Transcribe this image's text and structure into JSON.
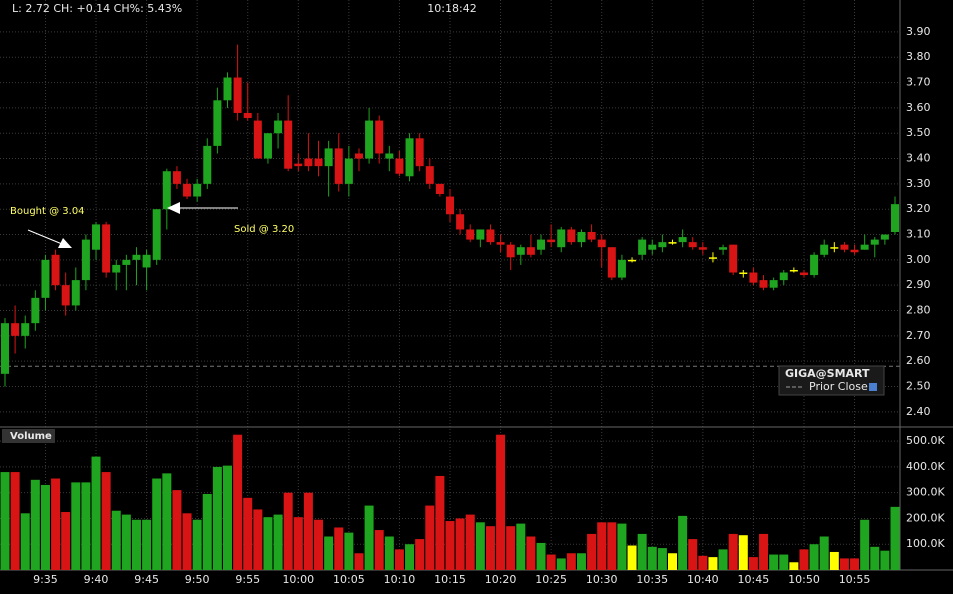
{
  "chart_data": {
    "type": "candlestick",
    "header": "L: 2.72 CH: +0.14 CH%: 5.43%",
    "clock": "10:18:42",
    "volume_title": "Volume",
    "legend": {
      "title": "GIGA@SMART",
      "entries": [
        "Prior Close"
      ]
    },
    "annotations": [
      "Bought @ 3.04",
      "Sold @ 3.20"
    ],
    "up_color": "#1fa51f",
    "down_color": "#d81414",
    "flat_color": "#ffff00",
    "prior_close": 2.58,
    "categories": [
      null,
      null,
      null,
      null,
      "9:35",
      null,
      null,
      null,
      null,
      "9:40",
      null,
      null,
      null,
      null,
      "9:45",
      null,
      null,
      null,
      null,
      "9:50",
      null,
      null,
      null,
      null,
      "9:55",
      null,
      null,
      null,
      null,
      "10:00",
      null,
      null,
      null,
      null,
      "10:05",
      null,
      null,
      null,
      null,
      "10:10",
      null,
      null,
      null,
      null,
      "10:15",
      null,
      null,
      null,
      null,
      "10:20",
      null,
      null,
      null,
      null,
      "10:25",
      null,
      null,
      null,
      null,
      "10:30",
      null,
      null,
      null,
      null,
      "10:35",
      null,
      null,
      null,
      null,
      "10:40",
      null,
      null,
      null,
      null,
      "10:45",
      null,
      null,
      null,
      null,
      "10:50",
      null,
      null,
      null,
      null,
      "10:55",
      null,
      null,
      null,
      null
    ],
    "open": [
      2.55,
      2.75,
      2.7,
      2.75,
      2.85,
      3.02,
      2.9,
      2.82,
      2.92,
      3.04,
      3.14,
      2.95,
      2.98,
      3.0,
      2.97,
      3.0,
      3.2,
      3.35,
      3.3,
      3.25,
      3.3,
      3.45,
      3.63,
      3.72,
      3.58,
      3.55,
      3.4,
      3.5,
      3.55,
      3.38,
      3.4,
      3.4,
      3.37,
      3.44,
      3.3,
      3.42,
      3.4,
      3.55,
      3.4,
      3.4,
      3.33,
      3.48,
      3.37,
      3.3,
      3.25,
      3.18,
      3.12,
      3.08,
      3.12,
      3.07,
      3.06,
      3.02,
      3.05,
      3.04,
      3.08,
      3.05,
      3.12,
      3.07,
      3.11,
      3.08,
      3.05,
      2.93,
      3.0,
      3.02,
      3.04,
      3.05,
      3.07,
      3.07,
      3.07,
      3.05,
      3.01,
      3.04,
      3.06,
      2.95,
      2.95,
      2.92,
      2.89,
      2.92,
      2.96,
      2.95,
      2.94,
      3.02,
      3.05,
      3.06,
      3.04,
      3.04,
      3.06,
      3.08,
      3.11
    ],
    "high": [
      2.77,
      2.82,
      2.78,
      2.88,
      3.02,
      3.04,
      2.95,
      2.97,
      3.1,
      3.15,
      3.15,
      3.0,
      3.02,
      3.05,
      3.04,
      3.2,
      3.36,
      3.37,
      3.32,
      3.32,
      3.48,
      3.68,
      3.74,
      3.85,
      3.7,
      3.58,
      3.5,
      3.58,
      3.65,
      3.42,
      3.5,
      3.47,
      3.47,
      3.5,
      3.45,
      3.44,
      3.6,
      3.57,
      3.45,
      3.43,
      3.5,
      3.5,
      3.4,
      3.3,
      3.28,
      3.2,
      3.14,
      3.12,
      3.14,
      3.1,
      3.07,
      3.06,
      3.1,
      3.1,
      3.14,
      3.13,
      3.13,
      3.12,
      3.14,
      3.1,
      3.05,
      3.02,
      3.01,
      3.09,
      3.08,
      3.1,
      3.08,
      3.12,
      3.09,
      3.07,
      3.03,
      3.06,
      3.06,
      2.96,
      2.97,
      2.94,
      2.93,
      2.96,
      2.97,
      2.96,
      3.03,
      3.08,
      3.07,
      3.07,
      3.06,
      3.1,
      3.09,
      3.1,
      3.25
    ],
    "low": [
      2.5,
      2.63,
      2.65,
      2.72,
      2.8,
      2.88,
      2.78,
      2.8,
      2.88,
      3.0,
      2.93,
      2.88,
      2.88,
      2.9,
      2.88,
      2.98,
      3.12,
      3.28,
      3.24,
      3.23,
      3.28,
      3.42,
      3.6,
      3.55,
      3.55,
      3.4,
      3.38,
      3.44,
      3.35,
      3.35,
      3.35,
      3.33,
      3.25,
      3.27,
      3.25,
      3.35,
      3.38,
      3.38,
      3.35,
      3.33,
      3.31,
      3.35,
      3.28,
      3.25,
      3.15,
      3.1,
      3.07,
      3.05,
      3.06,
      3.03,
      2.96,
      2.98,
      3.01,
      3.02,
      3.05,
      3.03,
      3.06,
      3.05,
      3.07,
      2.97,
      2.92,
      2.92,
      2.99,
      3.0,
      3.02,
      3.03,
      3.06,
      3.05,
      3.04,
      3.02,
      2.99,
      3.02,
      2.94,
      2.93,
      2.9,
      2.88,
      2.88,
      2.9,
      2.95,
      2.93,
      2.93,
      3.01,
      3.03,
      3.03,
      3.02,
      3.04,
      3.01,
      3.06,
      3.1
    ],
    "close": [
      2.75,
      2.7,
      2.75,
      2.85,
      3.0,
      2.9,
      2.82,
      2.92,
      3.08,
      3.14,
      2.95,
      2.98,
      3.0,
      3.02,
      3.02,
      3.2,
      3.35,
      3.3,
      3.25,
      3.3,
      3.45,
      3.63,
      3.72,
      3.58,
      3.56,
      3.4,
      3.5,
      3.55,
      3.36,
      3.37,
      3.37,
      3.37,
      3.44,
      3.3,
      3.4,
      3.4,
      3.55,
      3.42,
      3.42,
      3.34,
      3.48,
      3.37,
      3.3,
      3.26,
      3.18,
      3.12,
      3.08,
      3.12,
      3.07,
      3.06,
      3.01,
      3.05,
      3.02,
      3.08,
      3.07,
      3.12,
      3.07,
      3.11,
      3.08,
      3.05,
      2.93,
      3.0,
      3.0,
      3.08,
      3.06,
      3.07,
      3.07,
      3.09,
      3.05,
      3.04,
      3.01,
      3.05,
      2.95,
      2.95,
      2.91,
      2.89,
      2.92,
      2.95,
      2.96,
      2.94,
      3.02,
      3.06,
      3.05,
      3.04,
      3.03,
      3.06,
      3.08,
      3.1,
      3.22
    ],
    "volume": [
      380000,
      380000,
      220000,
      350000,
      330000,
      355000,
      225000,
      340000,
      340000,
      440000,
      380000,
      230000,
      215000,
      195000,
      195000,
      355000,
      375000,
      310000,
      220000,
      195000,
      295000,
      400000,
      405000,
      525000,
      280000,
      235000,
      205000,
      215000,
      300000,
      205000,
      300000,
      195000,
      130000,
      165000,
      145000,
      65000,
      250000,
      155000,
      130000,
      80000,
      100000,
      120000,
      250000,
      365000,
      190000,
      200000,
      215000,
      185000,
      170000,
      525000,
      170000,
      180000,
      130000,
      105000,
      60000,
      45000,
      65000,
      65000,
      140000,
      185000,
      185000,
      180000,
      95000,
      140000,
      90000,
      85000,
      65000,
      210000,
      120000,
      55000,
      50000,
      80000,
      140000,
      135000,
      50000,
      140000,
      60000,
      60000,
      30000,
      80000,
      100000,
      130000,
      70000,
      45000,
      45000,
      195000,
      90000,
      75000,
      245000
    ],
    "ylim": [
      2.344,
      4.026
    ],
    "yticks": [
      {
        "value": 2.4,
        "label": "2.40"
      },
      {
        "value": 2.5,
        "label": "2.50"
      },
      {
        "value": 2.6,
        "label": "2.60"
      },
      {
        "value": 2.7,
        "label": "2.70"
      },
      {
        "value": 2.8,
        "label": "2.80"
      },
      {
        "value": 2.9,
        "label": "2.90"
      },
      {
        "value": 3.0,
        "label": "3.00"
      },
      {
        "value": 3.1,
        "label": "3.10"
      },
      {
        "value": 3.2,
        "label": "3.20"
      },
      {
        "value": 3.3,
        "label": "3.30"
      },
      {
        "value": 3.4,
        "label": "3.40"
      },
      {
        "value": 3.5,
        "label": "3.50"
      },
      {
        "value": 3.6,
        "label": "3.60"
      },
      {
        "value": 3.7,
        "label": "3.70"
      },
      {
        "value": 3.8,
        "label": "3.80"
      },
      {
        "value": 3.9,
        "label": "3.90"
      }
    ],
    "volume_ylim": [
      0,
      551000
    ],
    "volume_yticks": [
      {
        "value": 100000,
        "label": "100.0K"
      },
      {
        "value": 200000,
        "label": "200.0K"
      },
      {
        "value": 300000,
        "label": "300.0K"
      },
      {
        "value": 400000,
        "label": "400.0K"
      },
      {
        "value": 500000,
        "label": "500.0K"
      }
    ],
    "grid": true
  }
}
